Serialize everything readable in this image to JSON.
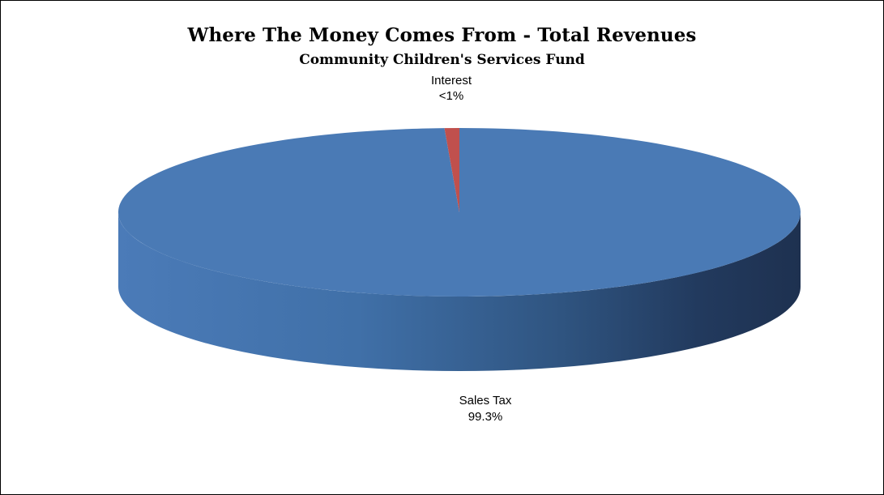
{
  "chart_data": {
    "type": "pie",
    "title": "Where The Money Comes From - Total Revenues",
    "subtitle": "Community Children's Services Fund",
    "three_d": true,
    "legend": "none",
    "slices": [
      {
        "name": "Sales Tax",
        "label": "99.3%",
        "value": 99.3,
        "color": "#4a7ab5"
      },
      {
        "name": "Interest",
        "label": "<1%",
        "value": 0.7,
        "color": "#c0504d"
      }
    ]
  }
}
